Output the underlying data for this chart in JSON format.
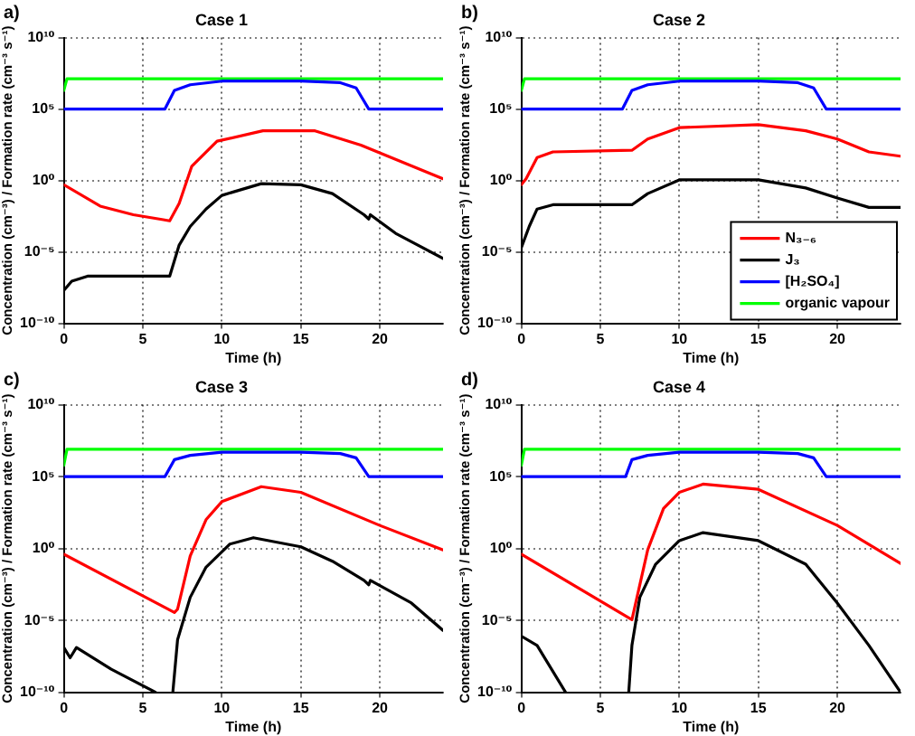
{
  "chart_data": [
    {
      "type": "line",
      "title": "Case 1",
      "annotations": [
        "a)"
      ],
      "xlabel": "Time (h)",
      "ylabel": "Concentration (cm⁻³) / Formation rate (cm⁻³ s⁻¹)",
      "log": "y",
      "grid": true,
      "legend": false,
      "marker": "none",
      "line_style": "solid",
      "xlim": [
        0,
        24
      ],
      "xticks": [
        0,
        5,
        10,
        15,
        20
      ],
      "ylim": [
        1e-10,
        10000000000.0
      ],
      "yticks": [
        {
          "value": 1e-10,
          "label": "10⁻¹⁰"
        },
        {
          "value": 1e-05,
          "label": "10⁻⁵"
        },
        {
          "value": 1,
          "label": "10⁰"
        },
        {
          "value": 100000.0,
          "label": "10⁵"
        },
        {
          "value": 10000000000.0,
          "label": "10¹⁰"
        }
      ],
      "series": [
        {
          "color": "#ff0000",
          "x": [
            0,
            2.3,
            4.4,
            6.3,
            6.7,
            7.3,
            8.1,
            9.7,
            12.6,
            15.9,
            18.8,
            24
          ],
          "values": [
            0.5,
            0.016,
            0.004,
            0.0018,
            0.0015,
            0.025,
            10,
            560,
            3000,
            3000,
            300,
            1.3
          ]
        },
        {
          "color": "#000000",
          "x": [
            0,
            0.5,
            1.5,
            6.7,
            7.3,
            8,
            9,
            10,
            12.5,
            15,
            17,
            19,
            19.3,
            19.4,
            21,
            24
          ],
          "values": [
            2e-08,
            9e-08,
            2e-07,
            2e-07,
            3e-05,
            0.0006,
            0.01,
            0.09,
            0.6,
            0.5,
            0.12,
            0.004,
            0.002,
            0.004,
            0.0002,
            3.5e-06
          ]
        },
        {
          "color": "#0000ff",
          "x": [
            0,
            6.4,
            7,
            8,
            10,
            15,
            17.5,
            18.5,
            19.3,
            24
          ],
          "values": [
            100000.0,
            100000.0,
            2000000.0,
            5000000.0,
            9000000.0,
            9000000.0,
            7000000.0,
            3000000.0,
            100000.0,
            100000.0
          ]
        },
        {
          "color": "#00ff00",
          "x": [
            0,
            0.2,
            24
          ],
          "values": [
            2000000.0,
            13000000.0,
            13000000.0
          ]
        }
      ]
    },
    {
      "type": "line",
      "title": "Case 2",
      "annotations": [
        "b)"
      ],
      "xlabel": "Time (h)",
      "ylabel": "Concentration (cm⁻³) / Formation rate (cm⁻³ s⁻¹)",
      "log": "y",
      "grid": true,
      "legend": "bottom right",
      "marker": "none",
      "line_style": "solid",
      "xlim": [
        0,
        24
      ],
      "xticks": [
        0,
        5,
        10,
        15,
        20
      ],
      "ylim": [
        1e-10,
        10000000000.0
      ],
      "yticks": [
        {
          "value": 1e-10,
          "label": "10⁻¹⁰"
        },
        {
          "value": 1e-05,
          "label": "10⁻⁵"
        },
        {
          "value": 1,
          "label": "10⁰"
        },
        {
          "value": 100000.0,
          "label": "10⁵"
        },
        {
          "value": 10000000000.0,
          "label": "10¹⁰"
        }
      ],
      "series": [
        {
          "name": "N₃₋₆",
          "color": "#ff0000",
          "x": [
            0,
            0.3,
            1,
            2,
            7,
            8,
            10,
            15,
            18,
            20,
            22,
            24
          ],
          "values": [
            0.5,
            1.3,
            40,
            100,
            130,
            800,
            5000,
            8000,
            3000,
            800,
            100,
            50
          ]
        },
        {
          "name": "J₃",
          "color": "#000000",
          "x": [
            0,
            0.5,
            1,
            2,
            7,
            8,
            10,
            15,
            18,
            20,
            22,
            24
          ],
          "values": [
            2e-05,
            0.0006,
            0.01,
            0.02,
            0.02,
            0.12,
            1.1,
            1.1,
            0.3,
            0.06,
            0.013,
            0.013
          ]
        },
        {
          "name": "[H₂SO₄]",
          "color": "#0000ff",
          "x": [
            0,
            6.4,
            7,
            8,
            10,
            15,
            17.5,
            18.5,
            19.3,
            24
          ],
          "values": [
            100000.0,
            100000.0,
            2000000.0,
            5000000.0,
            9000000.0,
            9000000.0,
            7000000.0,
            3000000.0,
            100000.0,
            100000.0
          ]
        },
        {
          "name": "organic vapour",
          "color": "#00ff00",
          "x": [
            0,
            0.2,
            24
          ],
          "values": [
            2000000.0,
            13000000.0,
            13000000.0
          ]
        }
      ]
    },
    {
      "type": "line",
      "title": "Case 3",
      "annotations": [
        "c)"
      ],
      "xlabel": "Time (h)",
      "ylabel": "Concentration (cm⁻³) / Formation rate (cm⁻³ s⁻¹)",
      "log": "y",
      "grid": true,
      "legend": false,
      "marker": "none",
      "line_style": "solid",
      "xlim": [
        0,
        24
      ],
      "xticks": [
        0,
        5,
        10,
        15,
        20
      ],
      "ylim": [
        1e-10,
        10000000000.0
      ],
      "yticks": [
        {
          "value": 1e-10,
          "label": "10⁻¹⁰"
        },
        {
          "value": 1e-05,
          "label": "10⁻⁵"
        },
        {
          "value": 1,
          "label": "10⁰"
        },
        {
          "value": 100000.0,
          "label": "10⁵"
        },
        {
          "value": 10000000000.0,
          "label": "10¹⁰"
        }
      ],
      "series": [
        {
          "color": "#ff0000",
          "x": [
            0,
            7,
            7.2,
            8,
            9,
            10,
            12.5,
            15,
            20,
            24
          ],
          "values": [
            0.4,
            3.5e-05,
            6e-05,
            0.3,
            100,
            1800,
            20000,
            8000,
            40,
            0.8
          ]
        },
        {
          "color": "#000000",
          "x": [
            0,
            0.4,
            0.8,
            3,
            5.8,
            6.5,
            6.9,
            7.2,
            8,
            9,
            10.5,
            12,
            15,
            17,
            19,
            19.3,
            19.4,
            22,
            24
          ],
          "values": [
            1.3e-07,
            2.5e-08,
            1.3e-07,
            4e-09,
            1e-10,
            null,
            1e-10,
            4.5e-07,
            0.0004,
            0.05,
            2,
            5.6,
            1.3,
            0.13,
            0.006,
            0.003,
            0.006,
            0.00016,
            2e-06
          ]
        },
        {
          "color": "#0000ff",
          "x": [
            0,
            6.4,
            7,
            8,
            10,
            15,
            17.5,
            18.5,
            19.3,
            24
          ],
          "values": [
            100000.0,
            100000.0,
            1500000.0,
            3000000.0,
            5000000.0,
            5000000.0,
            4000000.0,
            2000000.0,
            100000.0,
            100000.0
          ]
        },
        {
          "color": "#00ff00",
          "x": [
            0,
            0.2,
            24
          ],
          "values": [
            600000.0,
            8000000.0,
            8000000.0
          ]
        }
      ]
    },
    {
      "type": "line",
      "title": "Case 4",
      "annotations": [
        "d)"
      ],
      "xlabel": "Time (h)",
      "ylabel": "Concentration (cm⁻³) / Formation rate (cm⁻³ s⁻¹)",
      "log": "y",
      "grid": true,
      "legend": false,
      "marker": "none",
      "line_style": "solid",
      "xlim": [
        0,
        24
      ],
      "xticks": [
        0,
        5,
        10,
        15,
        20
      ],
      "ylim": [
        1e-10,
        10000000000.0
      ],
      "yticks": [
        {
          "value": 1e-10,
          "label": "10⁻¹⁰"
        },
        {
          "value": 1e-05,
          "label": "10⁻⁵"
        },
        {
          "value": 1,
          "label": "10⁰"
        },
        {
          "value": 100000.0,
          "label": "10⁵"
        },
        {
          "value": 10000000000.0,
          "label": "10¹⁰"
        }
      ],
      "series": [
        {
          "color": "#ff0000",
          "x": [
            0,
            7,
            8,
            9,
            10,
            11.5,
            15,
            20,
            24
          ],
          "values": [
            0.4,
            1.1e-05,
            0.8,
            600,
            8000,
            30000,
            13000,
            40,
            0.09
          ]
        },
        {
          "color": "#000000",
          "x": [
            0,
            1,
            2.8,
            4,
            6.8,
            7,
            7.5,
            8.5,
            10,
            11.5,
            15,
            18,
            20,
            22,
            24
          ],
          "values": [
            8e-07,
            1.8e-07,
            1e-10,
            null,
            1e-10,
            1.8e-07,
            0.0004,
            0.08,
            3.5,
            12.6,
            3.5,
            0.08,
            0.00016,
            1.8e-07,
            1e-10
          ]
        },
        {
          "color": "#0000ff",
          "x": [
            0,
            6.6,
            7,
            8,
            10,
            15,
            17.5,
            18.5,
            19.3,
            24
          ],
          "values": [
            100000.0,
            100000.0,
            1500000.0,
            3000000.0,
            5000000.0,
            5000000.0,
            4000000.0,
            2000000.0,
            100000.0,
            100000.0
          ]
        },
        {
          "color": "#00ff00",
          "x": [
            0,
            0.2,
            24
          ],
          "values": [
            600000.0,
            8000000.0,
            8000000.0
          ]
        }
      ]
    }
  ]
}
